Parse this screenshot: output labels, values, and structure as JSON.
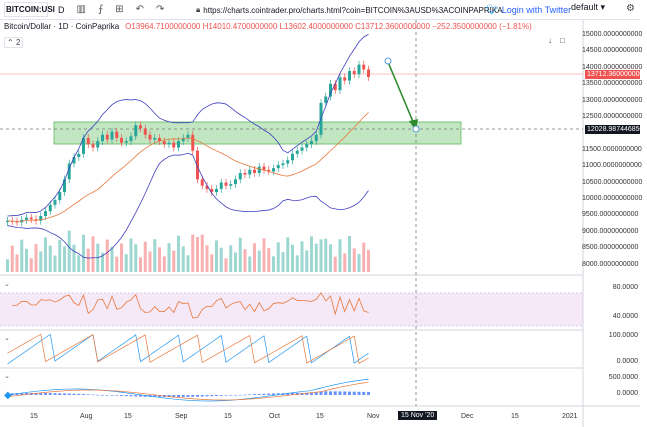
{
  "toolbar": {
    "symbol": "BITCOIN:USI",
    "interval": "D",
    "url": "https://charts.cointrader.pro/charts.html?coin=BITCOIN%3AUSD%3ACOINPAPRIKA",
    "twitter_login": "Login with Twitter",
    "layout": "default"
  },
  "legend": {
    "name": "Bitcoin/Dollar · 1D · CoinPaprika",
    "ohlc": "O13964.7100000000 H14010.4700000000 L13602.4000000000 C13712.3600000000 −252.3500000000 (−1.81%)",
    "collapse": "2"
  },
  "price_axis": [
    "15000.0000000000",
    "14500.0000000000",
    "14000.0000000000",
    "13500.0000000000",
    "13000.0000000000",
    "12500.0000000000",
    "11500.0000000000",
    "11000.0000000000",
    "10500.0000000000",
    "10000.0000000000",
    "9500.0000000000",
    "9000.0000000000",
    "8500.0000000000",
    "8000.0000000000"
  ],
  "last_price": "13712.3600000000",
  "crosshair_price": "12028.9874468500",
  "rsi_axis": [
    "80.0000",
    "40.0000"
  ],
  "stoch_axis": [
    "100.0000",
    "0.0000"
  ],
  "macd_axis": [
    "500.0000",
    "0.0000"
  ],
  "time_axis": [
    "15",
    "Aug",
    "15",
    "Sep",
    "15",
    "Oct",
    "15",
    "Nov",
    "Dec",
    "15",
    "2021"
  ],
  "crosshair_date": "15 Nov '20",
  "colors": {
    "up": "#26a69a",
    "down": "#ef5350",
    "band": "#3f3fbf",
    "ma": "#e8793b",
    "zone": "#8fd18f"
  },
  "chart_data": {
    "type": "candlestick",
    "title": "Bitcoin/Dollar · 1D · CoinPaprika",
    "x_range": [
      "2020-07-01",
      "2021-01-01"
    ],
    "ylim": [
      7600,
      15400
    ],
    "support_zone": [
      11800,
      12400
    ],
    "projection": {
      "from": 14150,
      "to": 12028.99
    },
    "closes": [
      9200,
      9180,
      9150,
      9230,
      9300,
      9250,
      9200,
      9350,
      9500,
      9700,
      9850,
      10100,
      10500,
      11000,
      11200,
      11300,
      11800,
      11600,
      11500,
      11700,
      11900,
      11750,
      12000,
      11800,
      11650,
      11700,
      11850,
      12200,
      12100,
      11900,
      11750,
      11800,
      11700,
      11600,
      11650,
      11500,
      11700,
      11800,
      11900,
      11400,
      10500,
      10300,
      10200,
      10100,
      10200,
      10400,
      10300,
      10350,
      10500,
      10700,
      10650,
      10800,
      10700,
      10900,
      10800,
      10750,
      10850,
      10950,
      11000,
      11100,
      11300,
      11400,
      11500,
      11600,
      11700,
      11900,
      12900,
      13100,
      13500,
      13300,
      13700,
      13600,
      13900,
      13800,
      14100,
      13950,
      13712
    ]
  }
}
